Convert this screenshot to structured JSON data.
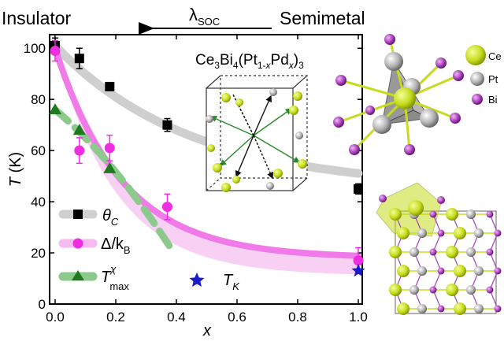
{
  "header": {
    "left_label": "Insulator",
    "right_label": "Semimetal",
    "arrow_symbol": "λ",
    "arrow_subscript": "SOC"
  },
  "compound": {
    "part1": "Ce",
    "sub1": "3",
    "part2": "Bi",
    "sub2": "4",
    "part3": "(Pt",
    "sub3": "1-",
    "sub3_var": "x",
    "part4": "Pd",
    "sub4": "x",
    "part5": ")",
    "sub5": "3"
  },
  "atoms_legend": [
    {
      "label": "Ce",
      "color": "#c6dc1e"
    },
    {
      "label": "Pt",
      "color": "#9a9a9a"
    },
    {
      "label": "Bi",
      "color": "#a63fb8"
    }
  ],
  "chart_data": {
    "type": "scatter",
    "xlabel": "x",
    "ylabel": "T (K)",
    "xlim": [
      0,
      1.0
    ],
    "ylim": [
      0,
      105
    ],
    "xticks": [
      "0.0",
      "0.2",
      "0.4",
      "0.6",
      "0.8",
      "1.0"
    ],
    "xtick_values": [
      0.0,
      0.2,
      0.4,
      0.6,
      0.8,
      1.0
    ],
    "yticks": [
      "0",
      "20",
      "40",
      "60",
      "80",
      "100"
    ],
    "ytick_values": [
      0,
      20,
      40,
      60,
      80,
      100
    ],
    "series": [
      {
        "name": "θ",
        "name_sub": "C",
        "marker": "square",
        "color": "#000000",
        "trend_color": "#cfcfcf",
        "x": [
          0.0,
          0.08,
          0.18,
          0.37,
          1.0
        ],
        "y": [
          101,
          96,
          85,
          70,
          45
        ],
        "err": [
          3,
          4,
          1.5,
          2.5,
          2
        ]
      },
      {
        "name": "Δ/k",
        "name_sub": "B",
        "marker": "circle",
        "color": "#ee2ee0",
        "trend_color": "#f07ae8",
        "x": [
          0.0,
          0.08,
          0.18,
          0.37,
          1.0
        ],
        "y": [
          99,
          60,
          61,
          38,
          17
        ],
        "err": [
          4,
          5,
          5,
          5,
          5
        ]
      },
      {
        "name": "T",
        "name_sup": "χ",
        "name_sub": "max",
        "marker": "triangle",
        "color": "#1f7a1f",
        "trend_color": "#8cc98c",
        "x": [
          0.0,
          0.08,
          0.18
        ],
        "y": [
          76,
          68,
          53
        ],
        "err": [
          0,
          0,
          0
        ]
      },
      {
        "name": "T",
        "name_sub": "K",
        "marker": "star",
        "color": "#1a1acc",
        "x": [
          1.0
        ],
        "y": [
          13
        ],
        "err": [
          0
        ]
      }
    ]
  }
}
